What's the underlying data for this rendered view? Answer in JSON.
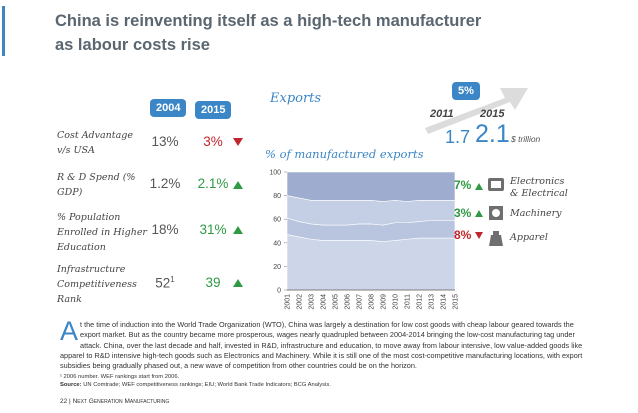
{
  "header": {
    "title_lines": [
      "China is reinventing itself as a high-tech manufacturer",
      "as labour costs rise"
    ]
  },
  "indicators": {
    "years": [
      "2004",
      "2015"
    ],
    "rows": [
      {
        "label": "Cost Advantage v/s USA",
        "v2004": "13%",
        "v2015": "3%",
        "trend": "down"
      },
      {
        "label": "R & D Spend (% GDP)",
        "v2004": "1.2%",
        "v2015": "2.1%",
        "trend": "up"
      },
      {
        "label": "% Population Enrolled in Higher Education",
        "v2004": "18%",
        "v2015": "31%",
        "trend": "up"
      },
      {
        "label": "Infrastructure Competitiveness Rank",
        "v2004": "52",
        "v2004_note": "1",
        "v2015": "39",
        "trend": "up"
      }
    ]
  },
  "exports": {
    "heading": "Exports",
    "growth": "5%",
    "years": [
      "2011",
      "2015"
    ],
    "values": [
      "1.7",
      "2.1"
    ],
    "unit": "$ trillion"
  },
  "chart_data": {
    "type": "area",
    "stacked": true,
    "title": "% of manufactured exports",
    "categories": [
      "2001",
      "2002",
      "2003",
      "2004",
      "2005",
      "2006",
      "2007",
      "2008",
      "2009",
      "2010",
      "2011",
      "2012",
      "2013",
      "2014",
      "2015"
    ],
    "series": [
      {
        "color": "#cdd6e8",
        "values": [
          47,
          45,
          43,
          42,
          42,
          42,
          42,
          42,
          41,
          42,
          43,
          44,
          44,
          44,
          44
        ]
      },
      {
        "color": "#b9c5de",
        "values": [
          14,
          13,
          13,
          13,
          13,
          13,
          14,
          14,
          14,
          15,
          14,
          14,
          15,
          15,
          15
        ]
      },
      {
        "color": "#c4cee4",
        "values": [
          19,
          20,
          20,
          21,
          21,
          21,
          20,
          20,
          20,
          19,
          18,
          18,
          17,
          17,
          17
        ]
      },
      {
        "color": "#9eadcf",
        "values": [
          20,
          22,
          24,
          24,
          24,
          24,
          24,
          24,
          25,
          24,
          25,
          24,
          24,
          24,
          24
        ]
      }
    ],
    "ylim": [
      0,
      100
    ],
    "yticks": [
      0,
      20,
      40,
      60,
      80,
      100
    ],
    "grid": false
  },
  "legend": [
    {
      "change": "7%",
      "trend": "up",
      "label": "Electronics & Electrical"
    },
    {
      "change": "3%",
      "trend": "up",
      "label": "Machinery"
    },
    {
      "change": "8%",
      "trend": "down",
      "label": "Apparel"
    }
  ],
  "body": {
    "drop_cap": "A",
    "text": "t the time of induction into the World Trade Organization (WTO), China was largely a destination for low cost goods with cheap labour geared towards the export market. But as the country became more prosperous, wages nearly quadrupled between 2004-2014 bringing the low-cost manufacturing tag under attack. China, over the last decade and half, invested in R&D, infrastructure and education, to move away from labour intensive, low value-added goods like apparel to R&D intensive high-tech goods such as Electronics and Machinery. While it is still one of the most cost-competitive manufacturing locations, with export subsidies being gradually phased out, a new wave of competition from other countries could be on the horizon."
  },
  "footnotes": {
    "note": "¹ 2006 number. WEF rankings start from 2006.",
    "source_label": "Source:",
    "source": "UN Comtrade; WEF competitiveness rankings; EIU; World Bank Trade Indicators; BCG Analysis."
  },
  "footer": {
    "page": "22",
    "separator": "|",
    "publication": "Next Generation Manufacturing"
  }
}
